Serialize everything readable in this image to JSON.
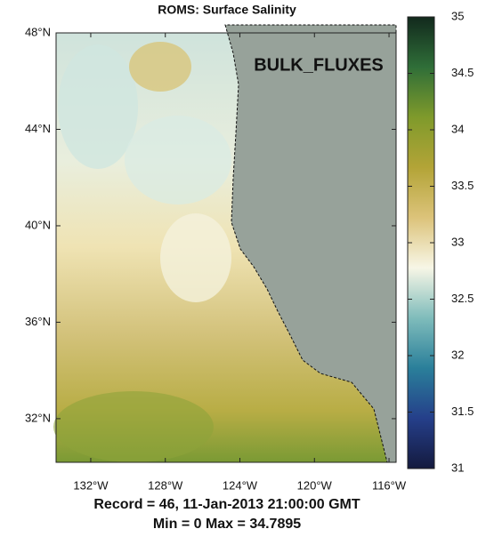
{
  "title": "ROMS:  Surface Salinity",
  "map": {
    "annotation": "BULK_FLUXES",
    "xlim": [
      -133.86,
      -115.62
    ],
    "ylim": [
      30.19,
      48
    ],
    "xticks": [
      {
        "value": -132,
        "label": "132°W"
      },
      {
        "value": -128,
        "label": "128°W"
      },
      {
        "value": -124,
        "label": "124°W"
      },
      {
        "value": -120,
        "label": "120°W"
      },
      {
        "value": -116,
        "label": "116°W"
      }
    ],
    "yticks": [
      {
        "value": 32,
        "label": "32°N"
      },
      {
        "value": 36,
        "label": "36°N"
      },
      {
        "value": 40,
        "label": "40°N"
      },
      {
        "value": 44,
        "label": "44°N"
      },
      {
        "value": 48,
        "label": "48°N"
      }
    ]
  },
  "colorbar": {
    "lim": [
      31,
      35
    ],
    "ticks": [
      31,
      31.5,
      32,
      32.5,
      33,
      33.5,
      34,
      34.5,
      35
    ],
    "colormap": [
      "#141a3e",
      "#253f8a",
      "#2a7f9a",
      "#7fbcbb",
      "#f7f6e6",
      "#dcc37a",
      "#b3a437",
      "#7f9a2b",
      "#2f6e38",
      "#12291d"
    ]
  },
  "footer": [
    "Record = 46,  11-Jan-2013 21:00:00 GMT",
    "Min = 0  Max = 34.7895"
  ]
}
